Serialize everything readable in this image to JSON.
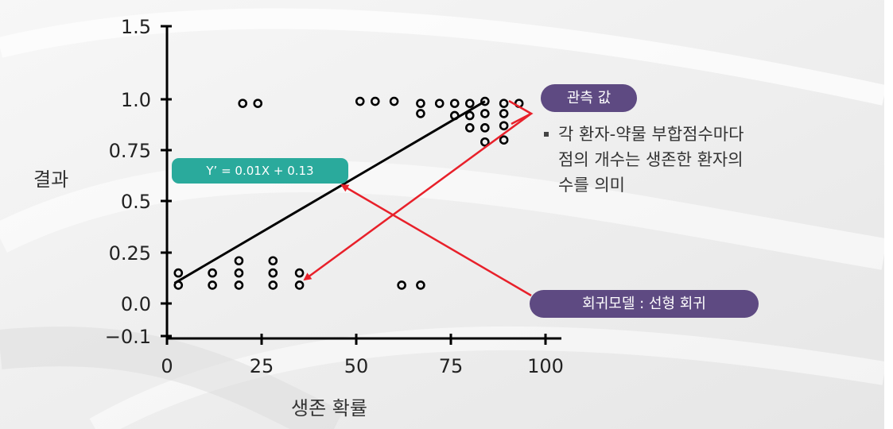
{
  "chart_data": {
    "type": "scatter",
    "xlabel": "생존 확률",
    "ylabel": "결과",
    "xlim": [
      0,
      100
    ],
    "ylim": [
      -0.1,
      1.5
    ],
    "x_ticks": [
      "0",
      "25",
      "50",
      "75",
      "100"
    ],
    "x_tick_values": [
      0,
      25,
      50,
      75,
      100
    ],
    "y_ticks": [
      "1.5",
      "1.0",
      "0.75",
      "0.5",
      "0.25",
      "0.0",
      "−0.1"
    ],
    "y_tick_values": [
      1.5,
      1.0,
      0.75,
      0.5,
      0.25,
      0.0,
      -0.1
    ],
    "grid": false,
    "points": [
      {
        "x": 3,
        "y": 0.15
      },
      {
        "x": 3,
        "y": 0.09
      },
      {
        "x": 12,
        "y": 0.15
      },
      {
        "x": 12,
        "y": 0.09
      },
      {
        "x": 19,
        "y": 0.21
      },
      {
        "x": 19,
        "y": 0.15
      },
      {
        "x": 19,
        "y": 0.09
      },
      {
        "x": 28,
        "y": 0.21
      },
      {
        "x": 28,
        "y": 0.15
      },
      {
        "x": 28,
        "y": 0.09
      },
      {
        "x": 35,
        "y": 0.15
      },
      {
        "x": 35,
        "y": 0.09
      },
      {
        "x": 20,
        "y": 0.98
      },
      {
        "x": 24,
        "y": 0.98
      },
      {
        "x": 51,
        "y": 0.99
      },
      {
        "x": 55,
        "y": 0.99
      },
      {
        "x": 60,
        "y": 0.99
      },
      {
        "x": 62,
        "y": 0.09
      },
      {
        "x": 67,
        "y": 0.09
      },
      {
        "x": 67,
        "y": 0.98
      },
      {
        "x": 67,
        "y": 0.93
      },
      {
        "x": 72,
        "y": 0.98
      },
      {
        "x": 76,
        "y": 0.98
      },
      {
        "x": 76,
        "y": 0.92
      },
      {
        "x": 80,
        "y": 0.98
      },
      {
        "x": 80,
        "y": 0.92
      },
      {
        "x": 80,
        "y": 0.86
      },
      {
        "x": 84,
        "y": 0.99
      },
      {
        "x": 84,
        "y": 0.93
      },
      {
        "x": 84,
        "y": 0.86
      },
      {
        "x": 84,
        "y": 0.79
      },
      {
        "x": 89,
        "y": 0.98
      },
      {
        "x": 89,
        "y": 0.93
      },
      {
        "x": 89,
        "y": 0.87
      },
      {
        "x": 89,
        "y": 0.8
      },
      {
        "x": 93,
        "y": 0.98
      }
    ],
    "regression_line": {
      "x_start": 2,
      "x_end": 84,
      "y_start": 0.1,
      "y_end": 0.99
    },
    "equation": "Y’ = 0.01X + 0.13",
    "annotations": {
      "observed_label": "관측 값",
      "model_label": "회귀모델 : 선형 회귀",
      "note": "각 환자-약물 부합점수마다\n점의 개수는 생존한 환자의\n수를 의미"
    },
    "colors": {
      "points": "#000000",
      "line": "#000000",
      "arrows": "#e8202a",
      "equation_pill": "#2aaa9c",
      "label_pills": "#5e4a82"
    }
  }
}
